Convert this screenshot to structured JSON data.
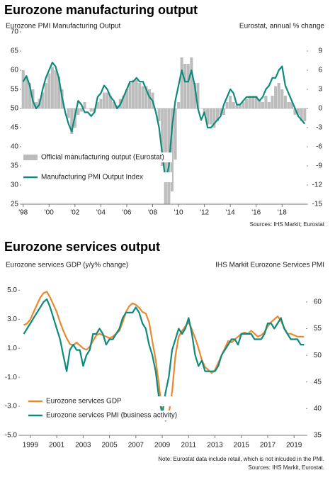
{
  "chart_data": [
    {
      "type": "combo",
      "title": "Eurozone manufacturing output",
      "ylabel": "Eurozone PMI Manufacturing Output",
      "y2label": "Eurostat, annual % change",
      "source": "Sources: IHS Markit; Eurostat",
      "legend": "lower left",
      "xlim": [
        1997.85,
        2019.9
      ],
      "ylim": [
        25,
        70
      ],
      "y2lim": [
        -15,
        12
      ],
      "xticks": [
        {
          "value": 1998,
          "label": "'98"
        },
        {
          "value": 2000,
          "label": "'00"
        },
        {
          "value": 2002,
          "label": "'02"
        },
        {
          "value": 2004,
          "label": "'04"
        },
        {
          "value": 2006,
          "label": "'06"
        },
        {
          "value": 2008,
          "label": "'08"
        },
        {
          "value": 2010,
          "label": "'10"
        },
        {
          "value": 2012,
          "label": "'12"
        },
        {
          "value": 2014,
          "label": "'14"
        },
        {
          "value": 2016,
          "label": "'16"
        },
        {
          "value": 2018,
          "label": "'18"
        }
      ],
      "yticks": [
        25,
        30,
        35,
        40,
        45,
        50,
        55,
        60,
        65,
        70
      ],
      "y2ticks": [
        -15,
        -12,
        -9,
        -6,
        -3,
        0,
        3,
        6,
        9
      ],
      "x": [
        1998,
        1998.25,
        1998.5,
        1998.75,
        1999,
        1999.25,
        1999.5,
        1999.75,
        2000,
        2000.25,
        2000.5,
        2000.75,
        2001,
        2001.25,
        2001.5,
        2001.75,
        2002,
        2002.25,
        2002.5,
        2002.75,
        2003,
        2003.25,
        2003.5,
        2003.75,
        2004,
        2004.25,
        2004.5,
        2004.75,
        2005,
        2005.25,
        2005.5,
        2005.75,
        2006,
        2006.25,
        2006.5,
        2006.75,
        2007,
        2007.25,
        2007.5,
        2007.75,
        2008,
        2008.25,
        2008.5,
        2008.75,
        2009,
        2009.25,
        2009.5,
        2009.75,
        2010,
        2010.25,
        2010.5,
        2010.75,
        2011,
        2011.25,
        2011.5,
        2011.75,
        2012,
        2012.25,
        2012.5,
        2012.75,
        2013,
        2013.25,
        2013.5,
        2013.75,
        2014,
        2014.25,
        2014.5,
        2014.75,
        2015,
        2015.25,
        2015.5,
        2015.75,
        2016,
        2016.25,
        2016.5,
        2016.75,
        2017,
        2017.25,
        2017.5,
        2017.75,
        2018,
        2018.25,
        2018.5,
        2018.75,
        2019,
        2019.25,
        2019.5,
        2019.75
      ],
      "series": [
        {
          "name": "Official manufacturing output (Eurostat)",
          "kind": "bar",
          "axis": "y2",
          "color": "#bcbcbc",
          "values": [
            6,
            5,
            4,
            3,
            1,
            1.5,
            2.5,
            4,
            5.5,
            6.5,
            6,
            5,
            3,
            0,
            -1.5,
            -4,
            -3,
            -1,
            -0.5,
            1,
            0,
            -0.5,
            -0.5,
            1,
            1.5,
            2.5,
            2.5,
            2,
            1,
            0.5,
            1.5,
            2,
            3,
            4,
            4.5,
            4.5,
            4,
            3.5,
            3.5,
            3,
            2.5,
            0,
            -2,
            -9,
            -15,
            -15,
            -13,
            -8,
            1,
            8,
            7,
            7,
            8,
            4,
            4,
            0,
            -1,
            -2.5,
            -2.5,
            -3,
            -2,
            -1,
            -1,
            1,
            2,
            1,
            0.5,
            0.5,
            1,
            1.5,
            2,
            2,
            2,
            1.5,
            1,
            2,
            1,
            2,
            3.5,
            4,
            3,
            2,
            1,
            1,
            -1,
            -1,
            -2,
            -2
          ]
        },
        {
          "name": "Manufacturing PMI Output Index",
          "kind": "line",
          "axis": "y",
          "color": "#0e8a7d",
          "values": [
            57,
            58.5,
            56,
            52,
            50,
            51,
            55,
            58,
            60,
            62,
            61,
            58,
            53,
            49,
            46,
            44,
            48,
            52,
            51,
            49,
            49,
            48,
            49,
            53,
            54,
            56,
            55,
            53,
            52,
            50,
            51,
            53,
            55,
            57,
            57,
            58,
            57,
            57,
            55,
            53,
            52,
            49,
            45,
            38,
            31,
            35,
            45,
            52,
            56,
            60,
            57,
            57,
            60,
            56,
            50,
            47,
            49,
            45,
            45,
            46,
            47,
            48,
            51,
            53,
            55,
            54,
            51,
            51,
            52,
            53,
            53,
            53,
            53,
            52,
            53,
            55,
            56,
            58,
            58,
            60,
            61,
            56,
            54,
            52,
            50,
            48,
            47,
            46
          ]
        }
      ]
    },
    {
      "type": "combo",
      "title": "Eurozone services output",
      "ylabel": "Eurozone services GDP (y/y% change)",
      "y2label": "IHS Markit Eurozone Services PMI",
      "note": "Note: Eurostat data include retail, which is not inlcuded in the PMI.",
      "source": "Sources: IHS Markit, Eurostat.",
      "legend": "lower left",
      "xlim": [
        1998.2,
        2019.9
      ],
      "ylim": [
        -5,
        5.7
      ],
      "y2lim": [
        35,
        64.1
      ],
      "xticks": [
        1999,
        2001,
        2003,
        2005,
        2007,
        2009,
        2011,
        2013,
        2015,
        2017,
        2019
      ],
      "yticks": [
        {
          "value": -5,
          "label": "-5.0"
        },
        {
          "value": -3,
          "label": "-3.0"
        },
        {
          "value": -1,
          "label": "-1.0"
        },
        {
          "value": 1,
          "label": "1.0"
        },
        {
          "value": 3,
          "label": "3.0"
        },
        {
          "value": 5,
          "label": "5.0"
        }
      ],
      "y2ticks": [
        35,
        40,
        45,
        50,
        55,
        60
      ],
      "x": [
        1998.5,
        1998.75,
        1999,
        1999.25,
        1999.5,
        1999.75,
        2000,
        2000.25,
        2000.5,
        2000.75,
        2001,
        2001.25,
        2001.5,
        2001.75,
        2002,
        2002.25,
        2002.5,
        2002.75,
        2003,
        2003.25,
        2003.5,
        2003.75,
        2004,
        2004.25,
        2004.5,
        2004.75,
        2005,
        2005.25,
        2005.5,
        2005.75,
        2006,
        2006.25,
        2006.5,
        2006.75,
        2007,
        2007.25,
        2007.5,
        2007.75,
        2008,
        2008.25,
        2008.5,
        2008.75,
        2009,
        2009.25,
        2009.5,
        2009.75,
        2010,
        2010.25,
        2010.5,
        2010.75,
        2011,
        2011.25,
        2011.5,
        2011.75,
        2012,
        2012.25,
        2012.5,
        2012.75,
        2013,
        2013.25,
        2013.5,
        2013.75,
        2014,
        2014.25,
        2014.5,
        2014.75,
        2015,
        2015.25,
        2015.5,
        2015.75,
        2016,
        2016.25,
        2016.5,
        2016.75,
        2017,
        2017.25,
        2017.5,
        2017.75,
        2018,
        2018.25,
        2018.5,
        2018.75,
        2019,
        2019.25,
        2019.5,
        2019.75
      ],
      "series": [
        {
          "name": "Eurozone services GDP",
          "kind": "line",
          "axis": "y",
          "color": "#e8892f",
          "values": [
            2.6,
            2.7,
            3.0,
            3.5,
            4.0,
            4.5,
            4.8,
            4.9,
            4.5,
            4.0,
            3.5,
            2.8,
            2.2,
            1.7,
            1.3,
            1.2,
            1.4,
            1.2,
            1.0,
            0.9,
            1.1,
            1.5,
            1.9,
            2.0,
            1.9,
            1.8,
            1.7,
            1.8,
            2.0,
            2.2,
            2.8,
            3.5,
            3.9,
            4.1,
            4.0,
            3.8,
            3.5,
            3.4,
            2.8,
            1.5,
            0.2,
            -1.5,
            -3.5,
            -4.0,
            -3.5,
            -2.0,
            0.5,
            1.8,
            2.2,
            2.5,
            2.8,
            2.3,
            1.7,
            1.0,
            0.2,
            -0.3,
            -0.5,
            -0.7,
            -0.5,
            0.0,
            0.5,
            1.0,
            1.5,
            1.4,
            1.6,
            1.8,
            2.0,
            2.1,
            2.0,
            2.2,
            2.0,
            1.8,
            1.9,
            2.1,
            2.5,
            2.8,
            3.0,
            3.2,
            2.9,
            2.4,
            2.0,
            2.0,
            1.9,
            1.8,
            1.8,
            1.8
          ]
        },
        {
          "name": "Eurozone services PMI (business activity)",
          "kind": "line",
          "axis": "y2",
          "color": "#0e8a7d",
          "values": [
            54,
            55,
            56,
            57,
            58,
            59,
            60,
            60.5,
            59,
            57,
            55,
            53,
            50,
            47,
            51,
            52,
            51,
            51,
            48,
            50,
            51,
            54,
            54,
            55,
            54,
            52,
            53,
            53,
            54,
            55,
            57,
            58,
            58,
            58,
            59,
            58,
            56,
            55,
            52,
            50,
            47,
            42,
            39,
            43,
            46,
            51,
            53,
            55,
            54,
            55,
            57,
            54,
            50,
            48,
            49,
            47,
            47,
            47,
            47,
            48,
            50,
            51,
            52,
            53,
            53,
            52,
            54,
            54,
            54,
            54,
            53,
            53,
            53,
            54,
            56,
            56,
            55,
            56,
            57,
            55,
            54,
            53,
            53,
            53,
            52,
            52
          ]
        }
      ]
    }
  ]
}
